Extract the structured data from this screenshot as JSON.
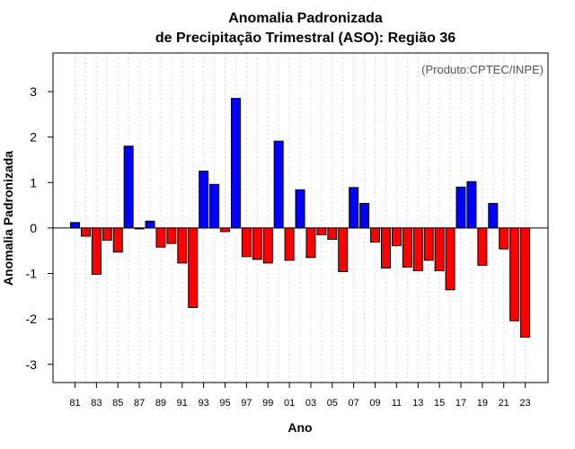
{
  "chart_data": {
    "type": "bar",
    "title": "Anomalia Padronizada",
    "subtitle": "de Precipitação Trimestral (ASO): Região 36",
    "xlabel": "Ano",
    "ylabel": "Anomalia Padronizada",
    "credit": "(Produto:CPTEC/INPE)",
    "ylim": [
      -3.4,
      3.85
    ],
    "yticks": [
      -3,
      -2,
      -1,
      0,
      1,
      2,
      3
    ],
    "ytick_labels": [
      "-3",
      "-2",
      "-1",
      "0",
      "1",
      "2",
      "3"
    ],
    "grid": "vertical dotted",
    "positive_color": "#0000ff",
    "negative_color": "#ff0000",
    "categories": [
      "81",
      "82",
      "83",
      "84",
      "85",
      "86",
      "87",
      "88",
      "89",
      "90",
      "91",
      "92",
      "93",
      "94",
      "95",
      "96",
      "97",
      "98",
      "99",
      "00",
      "01",
      "02",
      "03",
      "04",
      "05",
      "06",
      "07",
      "08",
      "09",
      "10",
      "11",
      "12",
      "13",
      "14",
      "15",
      "16",
      "17",
      "18",
      "19",
      "20",
      "21",
      "22",
      "23"
    ],
    "xtick_labels": [
      "81",
      "83",
      "85",
      "87",
      "89",
      "91",
      "93",
      "95",
      "97",
      "99",
      "01",
      "03",
      "05",
      "07",
      "09",
      "11",
      "13",
      "15",
      "17",
      "19",
      "21",
      "23"
    ],
    "values": [
      0.12,
      -0.18,
      -1.02,
      -0.27,
      -0.53,
      1.8,
      -0.02,
      0.15,
      -0.42,
      -0.34,
      -0.77,
      -1.75,
      1.25,
      0.96,
      -0.08,
      2.85,
      -0.63,
      -0.69,
      -0.77,
      1.91,
      -0.71,
      0.84,
      -0.65,
      -0.15,
      -0.25,
      -0.96,
      0.89,
      0.54,
      -0.31,
      -0.88,
      -0.39,
      -0.86,
      -0.94,
      -0.71,
      -0.94,
      -1.36,
      0.9,
      1.02,
      -0.82,
      0.54,
      -0.46,
      -2.04,
      -2.4
    ]
  }
}
